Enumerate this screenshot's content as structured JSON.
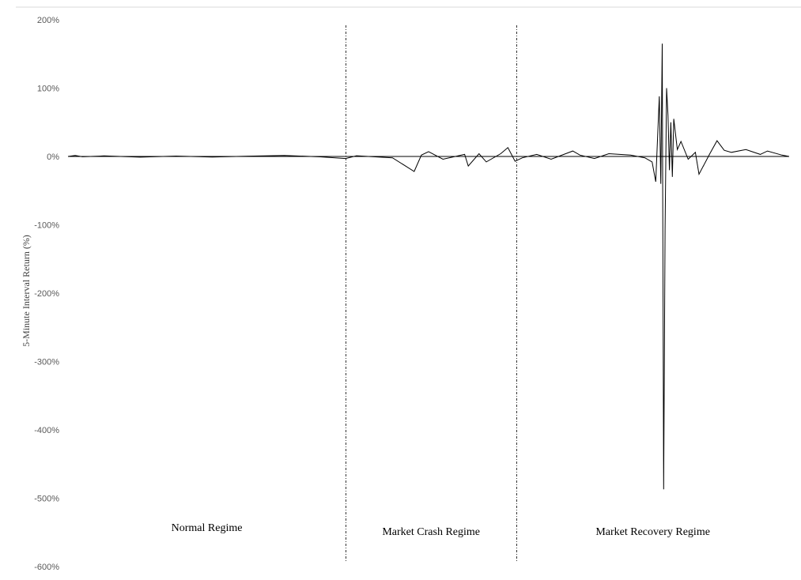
{
  "colors": {
    "series": "#000000",
    "axis": "#000000",
    "divider": "#333333",
    "frame": "#d9d9d9",
    "tick_text": "#595959"
  },
  "chart_data": {
    "type": "line",
    "title": "",
    "xlabel": "",
    "ylabel": "5-Minute Interval Return (%)",
    "ylim": [
      -600,
      200
    ],
    "y_ticks": [
      200,
      100,
      0,
      -100,
      -200,
      -300,
      -400,
      -500,
      -600
    ],
    "y_tick_labels": [
      "200%",
      "100%",
      "0%",
      "-100%",
      "-200%",
      "-300%",
      "-400%",
      "-500%",
      "-600%"
    ],
    "grid": false,
    "x_axis": "5-minute intervals (unlabeled)",
    "regimes": [
      {
        "label": "Normal Regime",
        "start": 0.0,
        "end": 0.385
      },
      {
        "label": "Market Crash Regime",
        "start": 0.385,
        "end": 0.622
      },
      {
        "label": "Market Recovery Regime",
        "start": 0.622,
        "end": 1.0
      }
    ],
    "series": [
      {
        "values": "high-frequency 5-minute returns fluctuating near 0%; small spikes (about ±5% to ±25%) in crash regime; largest spikes in recovery regime with peak about +165% and trough about -487%",
        "points": [
          [
            0.0,
            0
          ],
          [
            0.01,
            1.5
          ],
          [
            0.02,
            -0.5
          ],
          [
            0.05,
            0.8
          ],
          [
            0.1,
            -1
          ],
          [
            0.15,
            0.6
          ],
          [
            0.2,
            -0.8
          ],
          [
            0.25,
            0.5
          ],
          [
            0.3,
            1.5
          ],
          [
            0.35,
            -0.6
          ],
          [
            0.385,
            -3
          ],
          [
            0.4,
            1
          ],
          [
            0.45,
            -2
          ],
          [
            0.48,
            -22
          ],
          [
            0.49,
            2
          ],
          [
            0.5,
            7
          ],
          [
            0.52,
            -4
          ],
          [
            0.55,
            3
          ],
          [
            0.555,
            -14
          ],
          [
            0.57,
            4
          ],
          [
            0.58,
            -8
          ],
          [
            0.6,
            4
          ],
          [
            0.61,
            13
          ],
          [
            0.62,
            -7
          ],
          [
            0.63,
            -2
          ],
          [
            0.65,
            3
          ],
          [
            0.67,
            -4
          ],
          [
            0.7,
            8
          ],
          [
            0.71,
            2
          ],
          [
            0.73,
            -3
          ],
          [
            0.75,
            4
          ],
          [
            0.78,
            2
          ],
          [
            0.8,
            -2
          ],
          [
            0.81,
            -8
          ],
          [
            0.815,
            -37
          ],
          [
            0.82,
            88
          ],
          [
            0.822,
            -40
          ],
          [
            0.824,
            165
          ],
          [
            0.826,
            -487
          ],
          [
            0.828,
            -107
          ],
          [
            0.83,
            100
          ],
          [
            0.832,
            60
          ],
          [
            0.834,
            -20
          ],
          [
            0.836,
            50
          ],
          [
            0.838,
            -30
          ],
          [
            0.84,
            55
          ],
          [
            0.845,
            10
          ],
          [
            0.85,
            22
          ],
          [
            0.86,
            -4
          ],
          [
            0.87,
            6
          ],
          [
            0.875,
            -26
          ],
          [
            0.89,
            4
          ],
          [
            0.9,
            23
          ],
          [
            0.91,
            9
          ],
          [
            0.92,
            6
          ],
          [
            0.94,
            10
          ],
          [
            0.96,
            3
          ],
          [
            0.97,
            8
          ],
          [
            0.99,
            2
          ],
          [
            1.0,
            0
          ]
        ]
      }
    ]
  }
}
